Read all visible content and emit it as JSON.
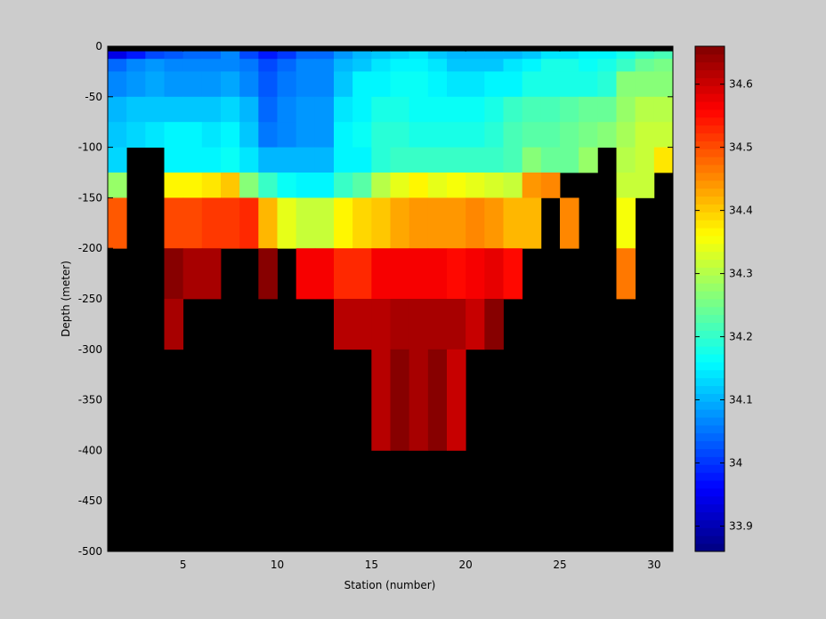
{
  "chart_data": {
    "type": "heatmap",
    "title": "",
    "xlabel": "Station (number)",
    "ylabel": "Depth (meter)",
    "xlim": [
      1,
      31
    ],
    "ylim": [
      -500,
      0
    ],
    "xticks": [
      5,
      10,
      15,
      20,
      25,
      30
    ],
    "yticks": [
      0,
      -50,
      -100,
      -150,
      -200,
      -250,
      -300,
      -350,
      -400,
      -450,
      -500
    ],
    "colorbar": {
      "colormap": "jet",
      "range": [
        33.86,
        34.66
      ],
      "ticks": [
        33.9,
        34,
        34.1,
        34.2,
        34.3,
        34.4,
        34.5,
        34.6
      ]
    },
    "no_data_color": "#000000",
    "grid": false,
    "x_centers": [
      1.5,
      2.5,
      3.5,
      4.5,
      5.5,
      6.5,
      7.5,
      8.5,
      9.5,
      10.5,
      11.5,
      12.5,
      13.5,
      14.5,
      15.5,
      16.5,
      17.5,
      18.5,
      19.5,
      20.5,
      21.5,
      22.5,
      23.5,
      24.5,
      25.5,
      26.5,
      27.5,
      28.5,
      29.5,
      30.5
    ],
    "rows": [
      {
        "top": 0,
        "bottom": -5,
        "values": [
          null,
          null,
          null,
          null,
          null,
          null,
          null,
          null,
          null,
          null,
          null,
          null,
          null,
          null,
          null,
          null,
          null,
          null,
          null,
          null,
          null,
          null,
          null,
          null,
          null,
          null,
          null,
          null,
          null,
          null
        ]
      },
      {
        "top": -5,
        "bottom": -12.5,
        "values": [
          33.94,
          33.98,
          34.02,
          34.03,
          34.04,
          34.04,
          34.06,
          34.02,
          33.98,
          34.0,
          34.04,
          34.04,
          34.08,
          34.1,
          34.12,
          34.13,
          34.14,
          34.12,
          34.1,
          34.1,
          34.1,
          34.1,
          34.12,
          34.14,
          34.14,
          34.15,
          34.16,
          34.18,
          34.2,
          34.22
        ]
      },
      {
        "top": -12.5,
        "bottom": -25,
        "values": [
          34.04,
          34.06,
          34.08,
          34.06,
          34.06,
          34.06,
          34.07,
          34.05,
          34.02,
          34.04,
          34.06,
          34.06,
          34.1,
          34.12,
          34.14,
          34.15,
          34.16,
          34.14,
          34.12,
          34.12,
          34.12,
          34.14,
          34.16,
          34.18,
          34.18,
          34.17,
          34.18,
          34.2,
          34.24,
          34.25
        ]
      },
      {
        "top": -25,
        "bottom": -50,
        "values": [
          34.06,
          34.08,
          34.09,
          34.08,
          34.08,
          34.08,
          34.09,
          34.06,
          34.03,
          34.05,
          34.07,
          34.07,
          34.12,
          34.15,
          34.16,
          34.17,
          34.17,
          34.15,
          34.14,
          34.14,
          34.15,
          34.16,
          34.18,
          34.18,
          34.18,
          34.18,
          34.19,
          34.26,
          34.27,
          34.27
        ]
      },
      {
        "top": -50,
        "bottom": -75,
        "values": [
          34.1,
          34.12,
          34.12,
          34.12,
          34.12,
          34.12,
          34.13,
          34.1,
          34.04,
          34.06,
          34.08,
          34.08,
          34.14,
          34.16,
          34.18,
          34.18,
          34.17,
          34.17,
          34.17,
          34.17,
          34.18,
          34.2,
          34.22,
          34.22,
          34.23,
          34.24,
          34.24,
          34.28,
          34.3,
          34.3
        ]
      },
      {
        "top": -75,
        "bottom": -100,
        "values": [
          34.12,
          34.13,
          34.14,
          34.15,
          34.15,
          34.14,
          34.16,
          34.12,
          34.05,
          34.07,
          34.08,
          34.08,
          34.15,
          34.17,
          34.19,
          34.19,
          34.18,
          34.18,
          34.18,
          34.18,
          34.19,
          34.21,
          34.23,
          34.23,
          34.24,
          34.25,
          34.26,
          34.29,
          34.31,
          34.31
        ]
      },
      {
        "top": -100,
        "bottom": -125,
        "values": [
          34.13,
          null,
          null,
          34.15,
          34.16,
          34.16,
          34.17,
          34.14,
          34.1,
          34.1,
          34.1,
          34.1,
          34.16,
          34.16,
          34.19,
          34.2,
          34.2,
          34.2,
          34.2,
          34.2,
          34.2,
          34.21,
          34.26,
          34.24,
          34.24,
          34.28,
          null,
          34.3,
          34.32,
          34.38
        ]
      },
      {
        "top": -125,
        "bottom": -150,
        "values": [
          34.28,
          null,
          null,
          34.36,
          34.36,
          34.38,
          34.4,
          34.27,
          34.2,
          34.17,
          34.16,
          34.16,
          34.2,
          34.23,
          34.3,
          34.34,
          34.36,
          34.34,
          34.35,
          34.34,
          34.33,
          34.32,
          34.44,
          34.45,
          null,
          null,
          null,
          34.32,
          34.32,
          null
        ]
      },
      {
        "top": -150,
        "bottom": -200,
        "values": [
          34.49,
          null,
          null,
          34.5,
          34.5,
          34.52,
          34.52,
          34.53,
          34.42,
          34.34,
          34.32,
          34.32,
          34.36,
          34.39,
          34.41,
          34.43,
          34.44,
          34.44,
          34.44,
          34.45,
          34.44,
          34.42,
          34.42,
          null,
          34.45,
          null,
          null,
          34.35,
          null,
          null
        ]
      },
      {
        "top": -200,
        "bottom": -250,
        "values": [
          null,
          null,
          null,
          34.65,
          34.63,
          34.63,
          null,
          null,
          34.65,
          null,
          34.56,
          34.56,
          34.53,
          34.53,
          34.56,
          34.56,
          34.56,
          34.56,
          34.55,
          34.57,
          34.58,
          34.55,
          null,
          null,
          null,
          null,
          null,
          34.46,
          null,
          null
        ]
      },
      {
        "top": -250,
        "bottom": -300,
        "values": [
          null,
          null,
          null,
          34.63,
          null,
          null,
          null,
          null,
          null,
          null,
          null,
          null,
          34.62,
          34.62,
          34.62,
          34.63,
          34.63,
          34.63,
          34.63,
          34.6,
          34.65,
          null,
          null,
          null,
          null,
          null,
          null,
          null,
          null,
          null
        ]
      },
      {
        "top": -300,
        "bottom": -400,
        "values": [
          null,
          null,
          null,
          null,
          null,
          null,
          null,
          null,
          null,
          null,
          null,
          null,
          null,
          null,
          34.62,
          34.66,
          34.63,
          34.66,
          34.6,
          null,
          null,
          null,
          null,
          null,
          null,
          null,
          null,
          null,
          null,
          null
        ]
      },
      {
        "top": -400,
        "bottom": -500,
        "values": [
          null,
          null,
          null,
          null,
          null,
          null,
          null,
          null,
          null,
          null,
          null,
          null,
          null,
          null,
          null,
          null,
          null,
          null,
          null,
          null,
          null,
          null,
          null,
          null,
          null,
          null,
          null,
          null,
          null,
          null
        ]
      }
    ]
  }
}
